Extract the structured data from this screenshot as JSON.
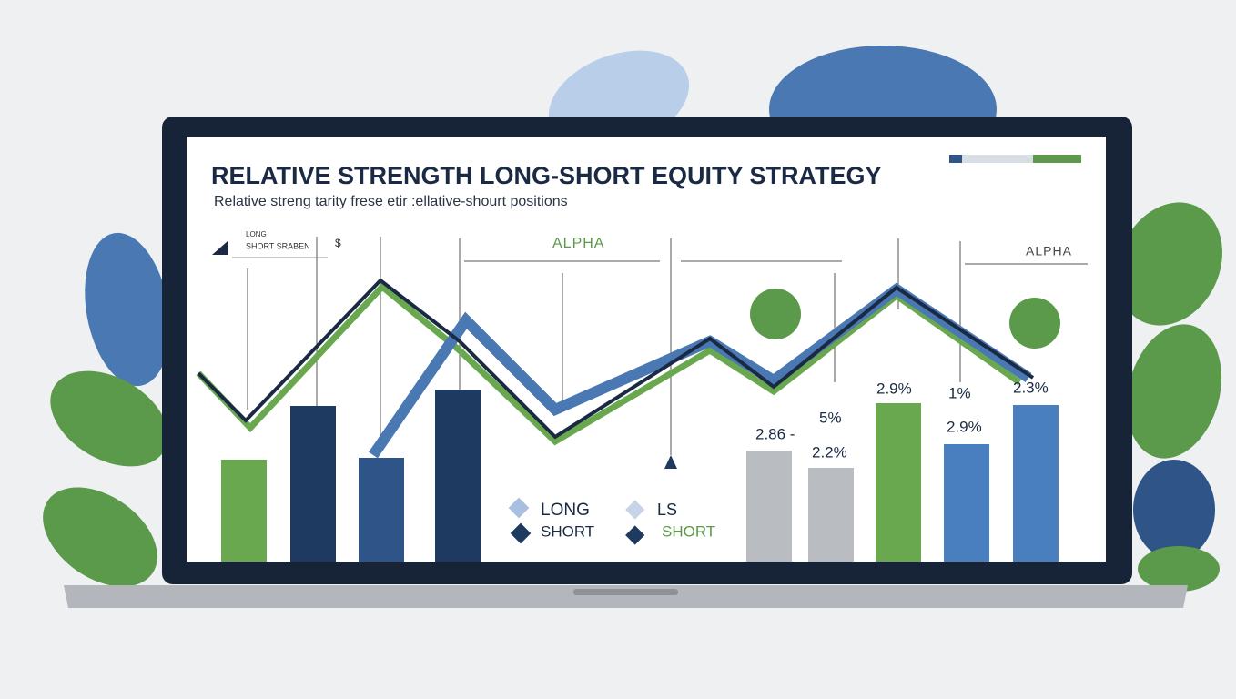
{
  "header": {
    "title": "RELATIVE STRENGTH LONG-SHORT EQUITY STRATEGY",
    "subtitle": "Relative streng tarity frese etir :ellative-shourt positions"
  },
  "mini_legend": {
    "long": "LONG",
    "short": "SHORT SRABEN",
    "symbol": "$"
  },
  "annotations": {
    "alpha_left": "ALPHA",
    "alpha_right": "ALPHA"
  },
  "bar_labels": [
    "2.86 -",
    "5%",
    "2.2%",
    "2.9%",
    "1%",
    "2.3%",
    "2.9%"
  ],
  "legend": {
    "left": [
      "LONG",
      "SHORT"
    ],
    "right": [
      "LS",
      "SHORT"
    ]
  }
}
